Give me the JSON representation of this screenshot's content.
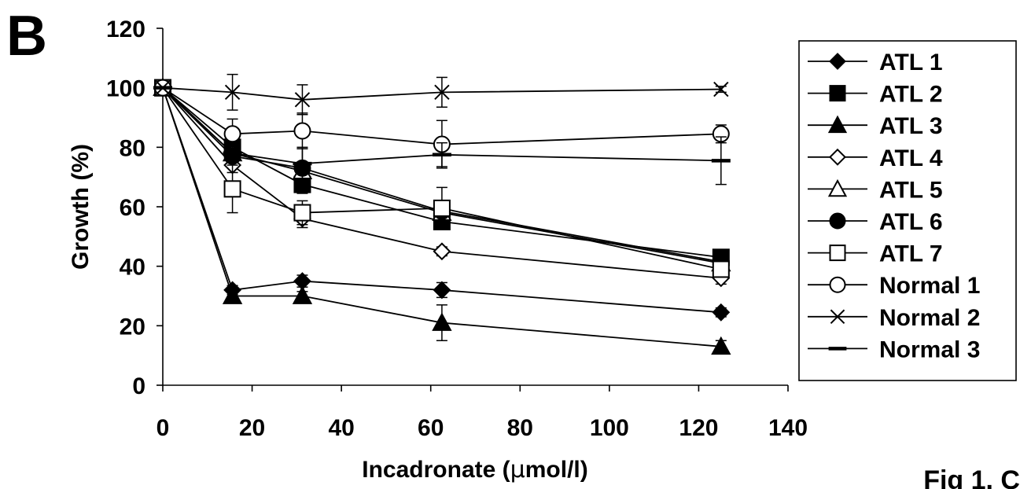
{
  "panel_label": "B",
  "corner_text": "Fig 1. C",
  "chart_data": {
    "type": "line",
    "xlabel_prefix": "Incadronate (",
    "xlabel_mu": "μ",
    "xlabel_suffix": "mol/l)",
    "ylabel": "Growth (%)",
    "xlim": [
      0,
      140
    ],
    "ylim": [
      0,
      120
    ],
    "xticks": [
      0,
      20,
      40,
      60,
      80,
      100,
      120,
      140
    ],
    "yticks": [
      0,
      20,
      40,
      60,
      80,
      100,
      120
    ],
    "grid": false,
    "legend_position": "right",
    "x": [
      0,
      15.6,
      31.25,
      62.5,
      125
    ],
    "series": [
      {
        "name": "ATL 1",
        "marker": "diamond",
        "fill": "#000000",
        "values": [
          100,
          32,
          35,
          32,
          24.5
        ],
        "err": [
          0,
          1.5,
          2,
          2.5,
          1.5
        ]
      },
      {
        "name": "ATL 2",
        "marker": "square",
        "fill": "#000000",
        "values": [
          100,
          80,
          67.5,
          55,
          43
        ],
        "err": [
          0,
          3,
          3,
          2,
          1.5
        ]
      },
      {
        "name": "ATL 3",
        "marker": "triangle",
        "fill": "#000000",
        "values": [
          100,
          30,
          30,
          21,
          13
        ],
        "err": [
          0,
          1.5,
          1.5,
          6,
          2
        ]
      },
      {
        "name": "ATL 4",
        "marker": "diamond",
        "fill": "#ffffff",
        "values": [
          100,
          74,
          56,
          45,
          36
        ],
        "err": [
          0,
          2.5,
          3,
          1.5,
          2
        ]
      },
      {
        "name": "ATL 5",
        "marker": "triangle",
        "fill": "#ffffff",
        "values": [
          100,
          78,
          72,
          58,
          41
        ],
        "err": [
          0,
          2,
          2,
          2,
          2
        ]
      },
      {
        "name": "ATL 6",
        "marker": "circle",
        "fill": "#000000",
        "values": [
          100,
          77,
          73,
          58.5,
          41.5
        ],
        "err": [
          0,
          2,
          7,
          2,
          2
        ]
      },
      {
        "name": "ATL 7",
        "marker": "square",
        "fill": "#ffffff",
        "values": [
          100,
          66,
          58,
          59.5,
          39
        ],
        "err": [
          0,
          8,
          4,
          7,
          2
        ]
      },
      {
        "name": "Normal 1",
        "marker": "circle",
        "fill": "#ffffff",
        "values": [
          100,
          84.5,
          85.5,
          81,
          84.5
        ],
        "err": [
          0,
          5,
          6,
          8,
          3
        ]
      },
      {
        "name": "Normal 2",
        "marker": "x",
        "fill": "#ffffff",
        "values": [
          100,
          98.5,
          96,
          98.5,
          99.5
        ],
        "err": [
          0,
          6,
          5,
          5,
          1
        ]
      },
      {
        "name": "Normal 3",
        "marker": "dash",
        "fill": "#000000",
        "values": [
          100,
          78,
          74.5,
          77.5,
          75.5
        ],
        "err": [
          0,
          3,
          5,
          4,
          8
        ]
      }
    ]
  }
}
